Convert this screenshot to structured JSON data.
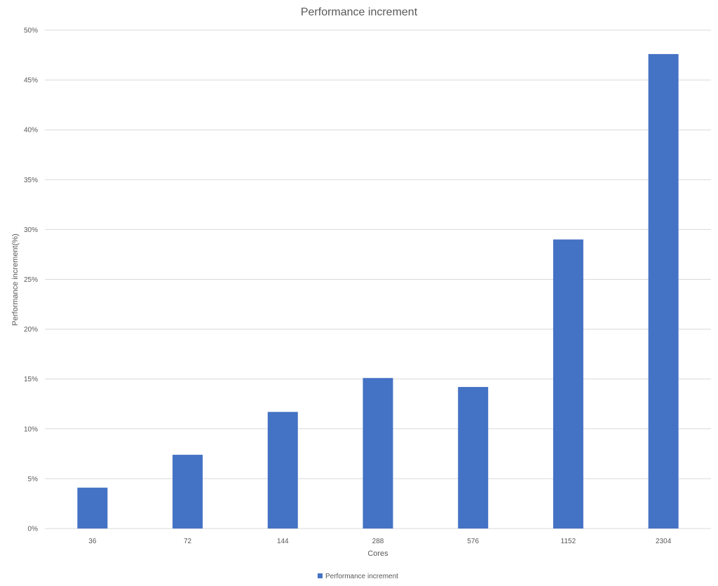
{
  "chart_data": {
    "type": "bar",
    "title": "Performance increment",
    "xlabel": "Cores",
    "ylabel": "Performance increment(%)",
    "categories": [
      "36",
      "72",
      "144",
      "288",
      "576",
      "1152",
      "2304"
    ],
    "series": [
      {
        "name": "Performance increment",
        "values": [
          4.1,
          7.4,
          11.7,
          15.1,
          14.2,
          29.0,
          47.6
        ],
        "color": "#4472C4"
      }
    ],
    "ylim": [
      0,
      50
    ],
    "yticks": [
      "0%",
      "5%",
      "10%",
      "15%",
      "20%",
      "25%",
      "30%",
      "35%",
      "40%",
      "45%",
      "50%"
    ],
    "ytick_values": [
      0,
      5,
      10,
      15,
      20,
      25,
      30,
      35,
      40,
      45,
      50
    ],
    "grid": true,
    "legend_position": "bottom"
  }
}
